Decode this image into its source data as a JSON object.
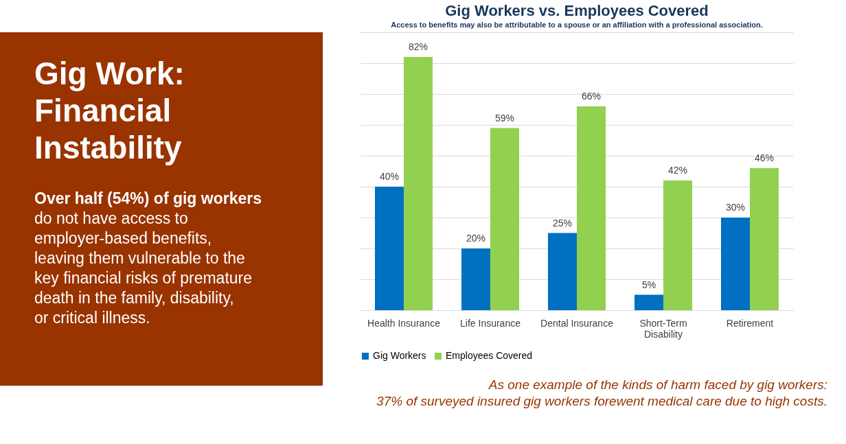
{
  "chart_data": [
    {
      "type": "other",
      "title": "Gig Work:\nFinancial\nInstability",
      "annotations": [
        "Over half (54%) of gig workers",
        "do not have access to\nemployer-based benefits,\nleaving them vulnerable to the\nkey financial risks of premature\ndeath in the family, disability,\nor critical illness."
      ]
    },
    {
      "type": "bar",
      "title": "Gig Workers vs. Employees Covered",
      "subtitle": "Access to benefits may also be attributable to a spouse or an affiliation with a professional association.",
      "categories": [
        "Health Insurance",
        "Life Insurance",
        "Dental Insurance",
        "Short-Term Disability",
        "Retirement"
      ],
      "series": [
        {
          "name": "Gig Workers",
          "color": "#0070c0",
          "values": [
            40,
            20,
            25,
            5,
            30
          ],
          "value_labels": [
            "40%",
            "20%",
            "25%",
            "5%",
            "30%"
          ]
        },
        {
          "name": "Employees Covered",
          "color": "#92d050",
          "values": [
            82,
            59,
            66,
            42,
            46
          ],
          "value_labels": [
            "82%",
            "59%",
            "66%",
            "42%",
            "46%"
          ]
        }
      ],
      "ylim": [
        0,
        90
      ],
      "yticks": [
        {
          "value": 0,
          "label": null
        },
        {
          "value": 10,
          "label": null
        },
        {
          "value": 20,
          "label": null
        },
        {
          "value": 30,
          "label": null
        },
        {
          "value": 40,
          "label": null
        },
        {
          "value": 50,
          "label": null
        },
        {
          "value": 60,
          "label": null
        },
        {
          "value": 70,
          "label": null
        },
        {
          "value": 80,
          "label": null
        },
        {
          "value": 90,
          "label": null
        }
      ],
      "tick_labels": "x",
      "grid": "y",
      "legend": "bottom",
      "annotations": [
        "As one example of the kinds of harm faced by gig workers:\n37% of surveyed insured gig workers forewent medical care due to high costs."
      ]
    }
  ]
}
